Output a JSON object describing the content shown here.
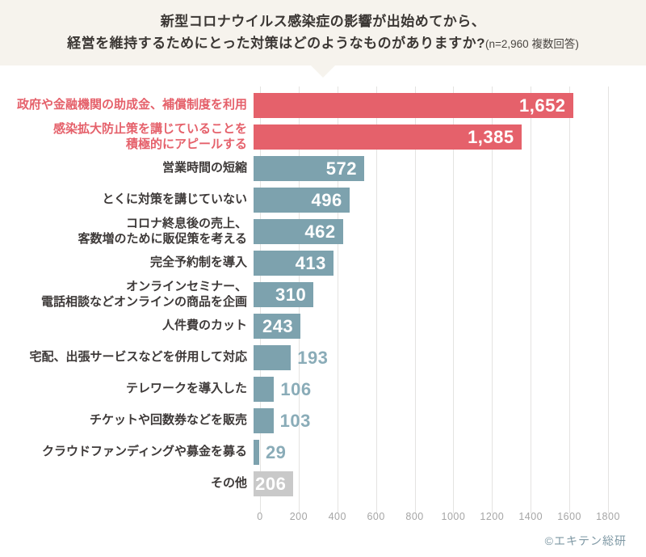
{
  "header": {
    "title_line1": "新型コロナウイルス感染症の影響が出始めてから、",
    "title_line2": "経営を維持するためにとった対策はどのようなものがありますか?",
    "title_note": "(n=2,960 複数回答)"
  },
  "chart_data": {
    "type": "bar",
    "orientation": "horizontal",
    "title": "新型コロナウイルス感染症の影響が出始めてから、経営を維持するためにとった対策はどのようなものがありますか?",
    "subtitle": "(n=2,960 複数回答)",
    "xlim": [
      0,
      1800
    ],
    "x_ticks": [
      0,
      200,
      400,
      600,
      800,
      1000,
      1200,
      1400,
      1600,
      1800
    ],
    "grid": true,
    "categories": [
      "政府や金融機関の助成金、補償制度を利用",
      "感染拡大防止策を講じていることを積極的にアピールする",
      "営業時間の短縮",
      "とくに対策を講じていない",
      "コロナ終息後の売上、客数増のために販促策を考える",
      "完全予約制を導入",
      "オンラインセミナー、電話相談などオンラインの商品を企画",
      "人件費のカット",
      "宅配、出張サービスなどを併用して対応",
      "テレワークを導入した",
      "チケットや回数券などを販売",
      "クラウドファンディングや募金を募る",
      "その他"
    ],
    "values": [
      1652,
      1385,
      572,
      496,
      462,
      413,
      310,
      243,
      193,
      106,
      103,
      29,
      206
    ],
    "items": [
      {
        "label_lines": [
          "政府や金融機関の助成金、補償制度を利用"
        ],
        "value": 1652,
        "display": "1,652",
        "color": "red",
        "value_position": "inside"
      },
      {
        "label_lines": [
          "感染拡大防止策を講じていることを",
          "積極的にアピールする"
        ],
        "value": 1385,
        "display": "1,385",
        "color": "red",
        "value_position": "inside"
      },
      {
        "label_lines": [
          "営業時間の短縮"
        ],
        "value": 572,
        "display": "572",
        "color": "teal",
        "value_position": "inside"
      },
      {
        "label_lines": [
          "とくに対策を講じていない"
        ],
        "value": 496,
        "display": "496",
        "color": "teal",
        "value_position": "inside"
      },
      {
        "label_lines": [
          "コロナ終息後の売上、",
          "客数増のために販促策を考える"
        ],
        "value": 462,
        "display": "462",
        "color": "teal",
        "value_position": "inside"
      },
      {
        "label_lines": [
          "完全予約制を導入"
        ],
        "value": 413,
        "display": "413",
        "color": "teal",
        "value_position": "inside"
      },
      {
        "label_lines": [
          "オンラインセミナー、",
          "電話相談などオンラインの商品を企画"
        ],
        "value": 310,
        "display": "310",
        "color": "teal",
        "value_position": "inside"
      },
      {
        "label_lines": [
          "人件費のカット"
        ],
        "value": 243,
        "display": "243",
        "color": "teal",
        "value_position": "inside"
      },
      {
        "label_lines": [
          "宅配、出張サービスなどを併用して対応"
        ],
        "value": 193,
        "display": "193",
        "color": "teal",
        "value_position": "outside"
      },
      {
        "label_lines": [
          "テレワークを導入した"
        ],
        "value": 106,
        "display": "106",
        "color": "teal",
        "value_position": "outside"
      },
      {
        "label_lines": [
          "チケットや回数券などを販売"
        ],
        "value": 103,
        "display": "103",
        "color": "teal",
        "value_position": "outside"
      },
      {
        "label_lines": [
          "クラウドファンディングや募金を募る"
        ],
        "value": 29,
        "display": "29",
        "color": "teal",
        "value_position": "outside"
      },
      {
        "label_lines": [
          "その他"
        ],
        "value": 206,
        "display": "206",
        "color": "gray",
        "value_position": "inside"
      }
    ],
    "colors": {
      "red": "#e5616b",
      "teal": "#7da2ae",
      "gray": "#c9c9c9",
      "outside_value_text": "#8aacb8",
      "gridline": "#e4e3e1",
      "header_bg": "#f6f3ed"
    }
  },
  "axis": {
    "tick_labels": [
      "0",
      "200",
      "400",
      "600",
      "800",
      "1000",
      "1200",
      "1400",
      "1600",
      "1800"
    ]
  },
  "footer": {
    "copyright": "©エキテン総研"
  }
}
